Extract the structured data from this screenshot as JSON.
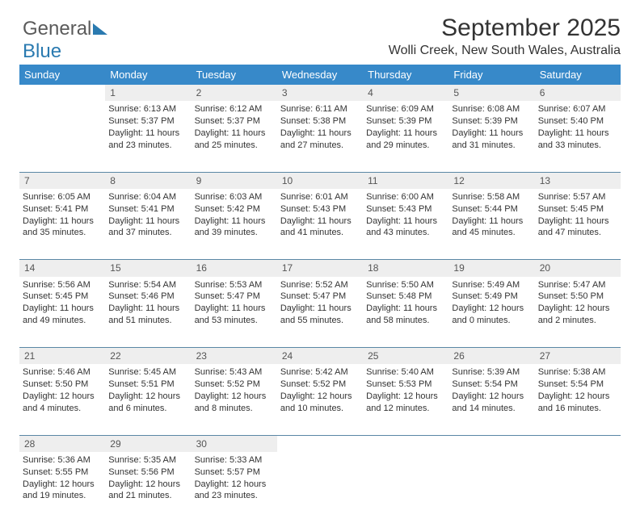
{
  "logo": {
    "word1": "General",
    "word2": "Blue"
  },
  "header": {
    "month_title": "September 2025",
    "location": "Wolli Creek, New South Wales, Australia"
  },
  "colors": {
    "header_bg": "#3789c9",
    "header_text": "#ffffff",
    "daynum_bg": "#eeeeee",
    "cell_border": "#5a87a5",
    "body_text": "#333333",
    "logo_gray": "#5a5a5a",
    "logo_blue": "#2a7ab0",
    "page_bg": "#ffffff"
  },
  "typography": {
    "month_title_fontsize": 30,
    "location_fontsize": 16,
    "weekday_fontsize": 13,
    "daynum_fontsize": 12,
    "cell_fontsize": 11
  },
  "weekdays": [
    "Sunday",
    "Monday",
    "Tuesday",
    "Wednesday",
    "Thursday",
    "Friday",
    "Saturday"
  ],
  "weeks": [
    [
      null,
      {
        "n": "1",
        "sunrise": "Sunrise: 6:13 AM",
        "sunset": "Sunset: 5:37 PM",
        "d1": "Daylight: 11 hours",
        "d2": "and 23 minutes."
      },
      {
        "n": "2",
        "sunrise": "Sunrise: 6:12 AM",
        "sunset": "Sunset: 5:37 PM",
        "d1": "Daylight: 11 hours",
        "d2": "and 25 minutes."
      },
      {
        "n": "3",
        "sunrise": "Sunrise: 6:11 AM",
        "sunset": "Sunset: 5:38 PM",
        "d1": "Daylight: 11 hours",
        "d2": "and 27 minutes."
      },
      {
        "n": "4",
        "sunrise": "Sunrise: 6:09 AM",
        "sunset": "Sunset: 5:39 PM",
        "d1": "Daylight: 11 hours",
        "d2": "and 29 minutes."
      },
      {
        "n": "5",
        "sunrise": "Sunrise: 6:08 AM",
        "sunset": "Sunset: 5:39 PM",
        "d1": "Daylight: 11 hours",
        "d2": "and 31 minutes."
      },
      {
        "n": "6",
        "sunrise": "Sunrise: 6:07 AM",
        "sunset": "Sunset: 5:40 PM",
        "d1": "Daylight: 11 hours",
        "d2": "and 33 minutes."
      }
    ],
    [
      {
        "n": "7",
        "sunrise": "Sunrise: 6:05 AM",
        "sunset": "Sunset: 5:41 PM",
        "d1": "Daylight: 11 hours",
        "d2": "and 35 minutes."
      },
      {
        "n": "8",
        "sunrise": "Sunrise: 6:04 AM",
        "sunset": "Sunset: 5:41 PM",
        "d1": "Daylight: 11 hours",
        "d2": "and 37 minutes."
      },
      {
        "n": "9",
        "sunrise": "Sunrise: 6:03 AM",
        "sunset": "Sunset: 5:42 PM",
        "d1": "Daylight: 11 hours",
        "d2": "and 39 minutes."
      },
      {
        "n": "10",
        "sunrise": "Sunrise: 6:01 AM",
        "sunset": "Sunset: 5:43 PM",
        "d1": "Daylight: 11 hours",
        "d2": "and 41 minutes."
      },
      {
        "n": "11",
        "sunrise": "Sunrise: 6:00 AM",
        "sunset": "Sunset: 5:43 PM",
        "d1": "Daylight: 11 hours",
        "d2": "and 43 minutes."
      },
      {
        "n": "12",
        "sunrise": "Sunrise: 5:58 AM",
        "sunset": "Sunset: 5:44 PM",
        "d1": "Daylight: 11 hours",
        "d2": "and 45 minutes."
      },
      {
        "n": "13",
        "sunrise": "Sunrise: 5:57 AM",
        "sunset": "Sunset: 5:45 PM",
        "d1": "Daylight: 11 hours",
        "d2": "and 47 minutes."
      }
    ],
    [
      {
        "n": "14",
        "sunrise": "Sunrise: 5:56 AM",
        "sunset": "Sunset: 5:45 PM",
        "d1": "Daylight: 11 hours",
        "d2": "and 49 minutes."
      },
      {
        "n": "15",
        "sunrise": "Sunrise: 5:54 AM",
        "sunset": "Sunset: 5:46 PM",
        "d1": "Daylight: 11 hours",
        "d2": "and 51 minutes."
      },
      {
        "n": "16",
        "sunrise": "Sunrise: 5:53 AM",
        "sunset": "Sunset: 5:47 PM",
        "d1": "Daylight: 11 hours",
        "d2": "and 53 minutes."
      },
      {
        "n": "17",
        "sunrise": "Sunrise: 5:52 AM",
        "sunset": "Sunset: 5:47 PM",
        "d1": "Daylight: 11 hours",
        "d2": "and 55 minutes."
      },
      {
        "n": "18",
        "sunrise": "Sunrise: 5:50 AM",
        "sunset": "Sunset: 5:48 PM",
        "d1": "Daylight: 11 hours",
        "d2": "and 58 minutes."
      },
      {
        "n": "19",
        "sunrise": "Sunrise: 5:49 AM",
        "sunset": "Sunset: 5:49 PM",
        "d1": "Daylight: 12 hours",
        "d2": "and 0 minutes."
      },
      {
        "n": "20",
        "sunrise": "Sunrise: 5:47 AM",
        "sunset": "Sunset: 5:50 PM",
        "d1": "Daylight: 12 hours",
        "d2": "and 2 minutes."
      }
    ],
    [
      {
        "n": "21",
        "sunrise": "Sunrise: 5:46 AM",
        "sunset": "Sunset: 5:50 PM",
        "d1": "Daylight: 12 hours",
        "d2": "and 4 minutes."
      },
      {
        "n": "22",
        "sunrise": "Sunrise: 5:45 AM",
        "sunset": "Sunset: 5:51 PM",
        "d1": "Daylight: 12 hours",
        "d2": "and 6 minutes."
      },
      {
        "n": "23",
        "sunrise": "Sunrise: 5:43 AM",
        "sunset": "Sunset: 5:52 PM",
        "d1": "Daylight: 12 hours",
        "d2": "and 8 minutes."
      },
      {
        "n": "24",
        "sunrise": "Sunrise: 5:42 AM",
        "sunset": "Sunset: 5:52 PM",
        "d1": "Daylight: 12 hours",
        "d2": "and 10 minutes."
      },
      {
        "n": "25",
        "sunrise": "Sunrise: 5:40 AM",
        "sunset": "Sunset: 5:53 PM",
        "d1": "Daylight: 12 hours",
        "d2": "and 12 minutes."
      },
      {
        "n": "26",
        "sunrise": "Sunrise: 5:39 AM",
        "sunset": "Sunset: 5:54 PM",
        "d1": "Daylight: 12 hours",
        "d2": "and 14 minutes."
      },
      {
        "n": "27",
        "sunrise": "Sunrise: 5:38 AM",
        "sunset": "Sunset: 5:54 PM",
        "d1": "Daylight: 12 hours",
        "d2": "and 16 minutes."
      }
    ],
    [
      {
        "n": "28",
        "sunrise": "Sunrise: 5:36 AM",
        "sunset": "Sunset: 5:55 PM",
        "d1": "Daylight: 12 hours",
        "d2": "and 19 minutes."
      },
      {
        "n": "29",
        "sunrise": "Sunrise: 5:35 AM",
        "sunset": "Sunset: 5:56 PM",
        "d1": "Daylight: 12 hours",
        "d2": "and 21 minutes."
      },
      {
        "n": "30",
        "sunrise": "Sunrise: 5:33 AM",
        "sunset": "Sunset: 5:57 PM",
        "d1": "Daylight: 12 hours",
        "d2": "and 23 minutes."
      },
      null,
      null,
      null,
      null
    ]
  ]
}
